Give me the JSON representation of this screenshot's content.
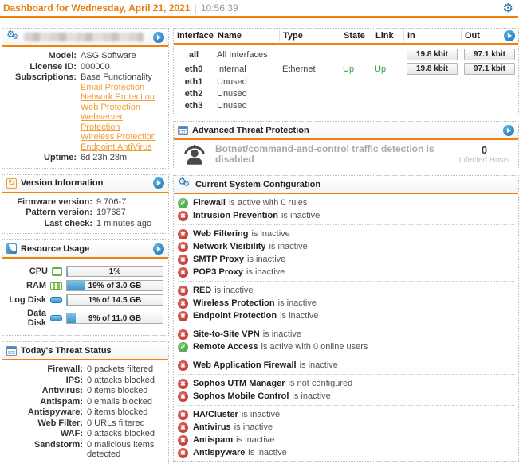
{
  "header": {
    "title": "Dashboard for Wednesday, April 21, 2021",
    "separator": "|",
    "time": "10:56:39"
  },
  "colors": {
    "accent_orange": "#f08307",
    "title_orange": "#ea7d10",
    "link_orange": "#f09d36",
    "active_green": "#3c9a3c",
    "inactive_red": "#b92b27",
    "button_blue": "#1d6fad",
    "bar_fill_blue": "#3c93c9",
    "up_green": "#2e9e3a"
  },
  "system_panel": {
    "model_label": "Model:",
    "model_value": "ASG Software",
    "license_label": "License ID:",
    "license_value": "000000",
    "subscriptions_label": "Subscriptions:",
    "subscriptions_base": "Base Functionality",
    "subscription_links": [
      "Email Protection",
      "Network Protection",
      "Web Protection",
      "Webserver Protection",
      "Wireless Protection",
      "Endpoint AntiVirus"
    ],
    "uptime_label": "Uptime:",
    "uptime_value": "6d 23h 28m"
  },
  "version_panel": {
    "title": "Version Information",
    "rows": [
      {
        "label": "Firmware version:",
        "value": "9.706-7"
      },
      {
        "label": "Pattern version:",
        "value": "197687"
      },
      {
        "label": "Last check:",
        "value": "1 minutes ago"
      }
    ]
  },
  "resource_panel": {
    "title": "Resource Usage",
    "rows": [
      {
        "label": "CPU",
        "percent": 1,
        "text": "1%"
      },
      {
        "label": "RAM",
        "percent": 19,
        "text": "19% of 3.0 GB"
      },
      {
        "label": "Log Disk",
        "percent": 1,
        "text": "1% of 14.5 GB"
      },
      {
        "label": "Data Disk",
        "percent": 9,
        "text": "9% of 11.0 GB"
      }
    ]
  },
  "threat_panel": {
    "title": "Today's Threat Status",
    "rows": [
      {
        "label": "Firewall:",
        "value": "0 packets filtered"
      },
      {
        "label": "IPS:",
        "value": "0 attacks blocked"
      },
      {
        "label": "Antivirus:",
        "value": "0 items blocked"
      },
      {
        "label": "Antispam:",
        "value": "0 emails blocked"
      },
      {
        "label": "Antispyware:",
        "value": "0 items blocked"
      },
      {
        "label": "Web Filter:",
        "value": "0 URLs filtered"
      },
      {
        "label": "WAF:",
        "value": "0 attacks blocked"
      },
      {
        "label": "Sandstorm:",
        "value": "0 malicious items detected"
      }
    ]
  },
  "interface_panel": {
    "columns": [
      "Interface",
      "Name",
      "Type",
      "State",
      "Link",
      "In",
      "Out"
    ],
    "rows": [
      {
        "interface": "all",
        "name": "All Interfaces",
        "type": "",
        "state": "",
        "link": "",
        "in": "19.8 kbit",
        "out": "97.1 kbit"
      },
      {
        "interface": "eth0",
        "name": "Internal",
        "type": "Ethernet",
        "state": "Up",
        "link": "Up",
        "in": "19.8 kbit",
        "out": "97.1 kbit"
      },
      {
        "interface": "eth1",
        "name": "Unused",
        "type": "",
        "state": "",
        "link": "",
        "in": "",
        "out": ""
      },
      {
        "interface": "eth2",
        "name": "Unused",
        "type": "",
        "state": "",
        "link": "",
        "in": "",
        "out": ""
      },
      {
        "interface": "eth3",
        "name": "Unused",
        "type": "",
        "state": "",
        "link": "",
        "in": "",
        "out": ""
      }
    ]
  },
  "atp_panel": {
    "title": "Advanced Threat Protection",
    "message": "Botnet/command-and-control traffic detection is disabled",
    "count": "0",
    "count_label": "Infected Hosts"
  },
  "config_panel": {
    "title": "Current System Configuration",
    "groups": [
      [
        {
          "name": "Firewall",
          "status": "active",
          "text": "is active with 0 rules"
        },
        {
          "name": "Intrusion Prevention",
          "status": "inactive",
          "text": "is inactive"
        }
      ],
      [
        {
          "name": "Web Filtering",
          "status": "inactive",
          "text": "is inactive"
        },
        {
          "name": "Network Visibility",
          "status": "inactive",
          "text": "is inactive"
        },
        {
          "name": "SMTP Proxy",
          "status": "inactive",
          "text": "is inactive"
        },
        {
          "name": "POP3 Proxy",
          "status": "inactive",
          "text": "is inactive"
        }
      ],
      [
        {
          "name": "RED",
          "status": "inactive",
          "text": "is inactive"
        },
        {
          "name": "Wireless Protection",
          "status": "inactive",
          "text": "is inactive"
        },
        {
          "name": "Endpoint Protection",
          "status": "inactive",
          "text": "is inactive"
        }
      ],
      [
        {
          "name": "Site-to-Site VPN",
          "status": "inactive",
          "text": "is inactive"
        },
        {
          "name": "Remote Access",
          "status": "active",
          "text": "is active with 0 online users"
        }
      ],
      [
        {
          "name": "Web Application Firewall",
          "status": "inactive",
          "text": "is inactive"
        }
      ],
      [
        {
          "name": "Sophos UTM Manager",
          "status": "inactive",
          "text": "is not configured"
        },
        {
          "name": "Sophos Mobile Control",
          "status": "inactive",
          "text": "is inactive"
        }
      ],
      [
        {
          "name": "HA/Cluster",
          "status": "inactive",
          "text": "is inactive"
        },
        {
          "name": "Antivirus",
          "status": "inactive",
          "text": "is inactive"
        },
        {
          "name": "Antispam",
          "status": "inactive",
          "text": "is inactive"
        },
        {
          "name": "Antispyware",
          "status": "inactive",
          "text": "is inactive"
        }
      ]
    ]
  }
}
